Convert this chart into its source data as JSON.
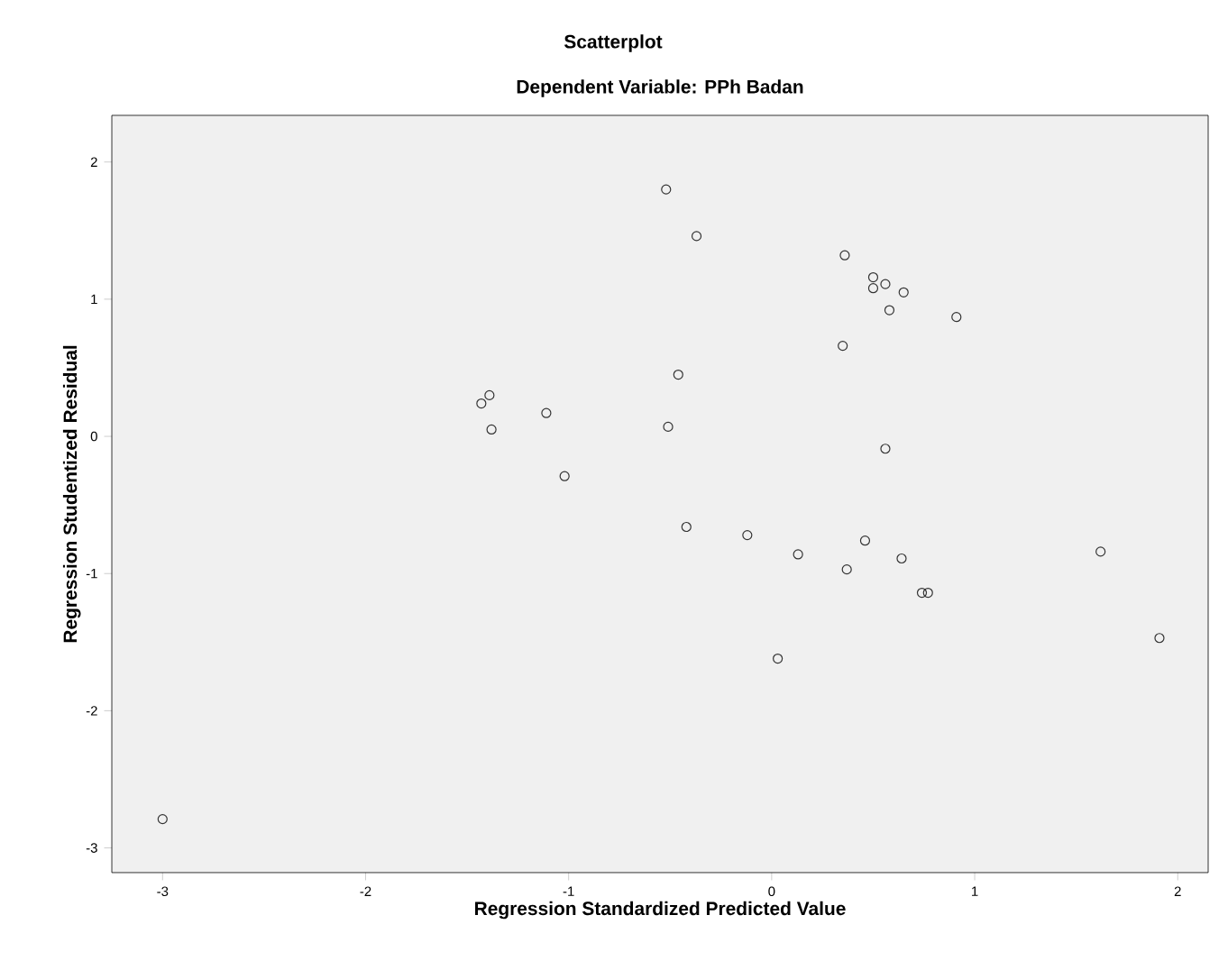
{
  "chart_data": {
    "type": "scatter",
    "title": "Scatterplot",
    "subtitle": "Dependent Variable: PPh Badan",
    "xlabel": "Regression Standardized Predicted Value",
    "ylabel": "Regression Studentized Residual",
    "x": [
      -3.0,
      -0.52,
      -0.37,
      0.36,
      0.5,
      0.56,
      0.5,
      0.65,
      0.58,
      0.91,
      0.35,
      -0.46,
      -1.43,
      -1.39,
      -1.11,
      -1.38,
      -0.51,
      -1.02,
      0.56,
      -0.42,
      -0.12,
      0.13,
      0.46,
      0.37,
      0.64,
      0.74,
      0.77,
      1.62,
      1.91,
      0.03
    ],
    "values": [
      -2.79,
      1.8,
      1.46,
      1.32,
      1.16,
      1.11,
      1.08,
      1.05,
      0.92,
      0.87,
      0.66,
      0.45,
      0.24,
      0.3,
      0.17,
      0.05,
      0.07,
      -0.29,
      -0.09,
      -0.66,
      -0.72,
      -0.86,
      -0.76,
      -0.97,
      -0.89,
      -1.14,
      -1.14,
      -0.84,
      -1.47,
      -1.62
    ],
    "color": "#333333",
    "marker": "circle",
    "xlim": [
      -3.25,
      2.15
    ],
    "ylim": [
      -3.18,
      2.34
    ],
    "xticks": [
      -3,
      -2,
      -1,
      0,
      1,
      2
    ],
    "yticks": [
      -3,
      -2,
      -1,
      0,
      1,
      2
    ]
  }
}
